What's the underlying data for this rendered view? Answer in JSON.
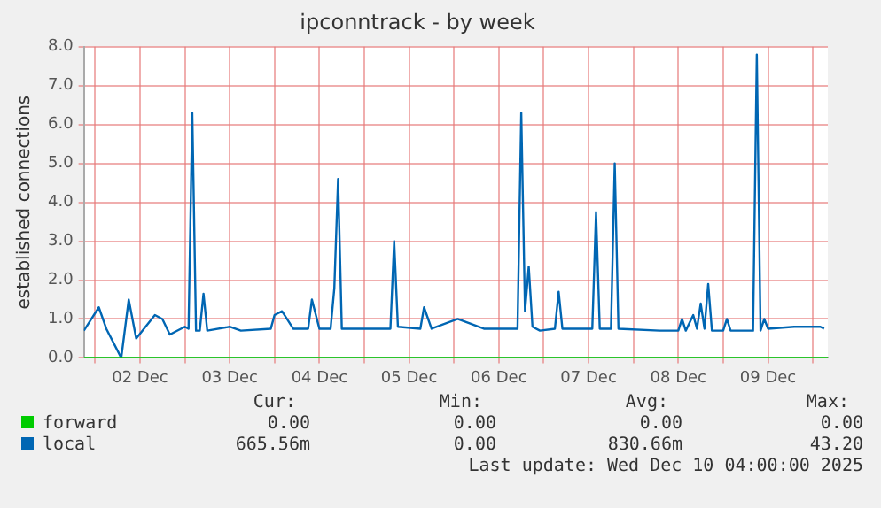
{
  "chart_data": {
    "type": "line",
    "title": "ipconntrack - by week",
    "ylabel": "established connections",
    "xlim": [
      "2025-12-01T21:00",
      "2025-12-10T04:00"
    ],
    "xticks": [
      {
        "value": "2025-12-02T00:00",
        "label": null
      },
      {
        "value": "2025-12-02T12:00",
        "label": "02 Dec"
      },
      {
        "value": "2025-12-03T00:00",
        "label": null
      },
      {
        "value": "2025-12-03T12:00",
        "label": "03 Dec"
      },
      {
        "value": "2025-12-04T00:00",
        "label": null
      },
      {
        "value": "2025-12-04T12:00",
        "label": "04 Dec"
      },
      {
        "value": "2025-12-05T00:00",
        "label": null
      },
      {
        "value": "2025-12-05T12:00",
        "label": "05 Dec"
      },
      {
        "value": "2025-12-06T00:00",
        "label": null
      },
      {
        "value": "2025-12-06T12:00",
        "label": "06 Dec"
      },
      {
        "value": "2025-12-07T00:00",
        "label": null
      },
      {
        "value": "2025-12-07T12:00",
        "label": "07 Dec"
      },
      {
        "value": "2025-12-08T00:00",
        "label": null
      },
      {
        "value": "2025-12-08T12:00",
        "label": "08 Dec"
      },
      {
        "value": "2025-12-09T00:00",
        "label": null
      },
      {
        "value": "2025-12-09T12:00",
        "label": "09 Dec"
      },
      {
        "value": "2025-12-10T00:00",
        "label": null
      }
    ],
    "ylim": [
      0,
      8
    ],
    "yticks": [
      {
        "value": 0,
        "label": "0.0"
      },
      {
        "value": 1,
        "label": "1.0"
      },
      {
        "value": 2,
        "label": "2.0"
      },
      {
        "value": 3,
        "label": "3.0"
      },
      {
        "value": 4,
        "label": "4.0"
      },
      {
        "value": 5,
        "label": "5.0"
      },
      {
        "value": 6,
        "label": "6.0"
      },
      {
        "value": 7,
        "label": "7.0"
      },
      {
        "value": 8,
        "label": "8.0"
      }
    ],
    "grid": true,
    "legend": "bottom",
    "marker": "none",
    "line_style": "solid",
    "series": [
      {
        "name": "forward",
        "color": "#00cc00",
        "x": [
          "2025-12-01T21:00",
          "2025-12-10T04:00"
        ],
        "values": [
          0,
          0
        ]
      },
      {
        "name": "local",
        "color": "#0066b3",
        "x": [
          "2025-12-01T21:00",
          "2025-12-02T01:00",
          "2025-12-02T03:00",
          "2025-12-02T07:00",
          "2025-12-02T09:00",
          "2025-12-02T11:00",
          "2025-12-02T16:00",
          "2025-12-02T18:00",
          "2025-12-02T20:00",
          "2025-12-03T00:00",
          "2025-12-03T01:00",
          "2025-12-03T02:00",
          "2025-12-03T03:00",
          "2025-12-03T04:00",
          "2025-12-03T05:00",
          "2025-12-03T06:00",
          "2025-12-03T12:00",
          "2025-12-03T15:00",
          "2025-12-03T23:00",
          "2025-12-04T00:00",
          "2025-12-04T02:00",
          "2025-12-04T05:00",
          "2025-12-04T09:00",
          "2025-12-04T10:00",
          "2025-12-04T12:00",
          "2025-12-04T15:00",
          "2025-12-04T16:00",
          "2025-12-04T17:00",
          "2025-12-04T18:00",
          "2025-12-05T01:00",
          "2025-12-05T07:00",
          "2025-12-05T08:00",
          "2025-12-05T09:00",
          "2025-12-05T15:00",
          "2025-12-05T16:00",
          "2025-12-05T18:00",
          "2025-12-06T01:00",
          "2025-12-06T08:00",
          "2025-12-06T17:00",
          "2025-12-06T18:00",
          "2025-12-06T19:00",
          "2025-12-06T20:00",
          "2025-12-06T21:00",
          "2025-12-06T23:00",
          "2025-12-07T03:00",
          "2025-12-07T04:00",
          "2025-12-07T05:00",
          "2025-12-07T13:00",
          "2025-12-07T14:00",
          "2025-12-07T15:00",
          "2025-12-07T18:00",
          "2025-12-07T19:00",
          "2025-12-07T20:00",
          "2025-12-08T07:00",
          "2025-12-08T12:00",
          "2025-12-08T13:00",
          "2025-12-08T14:00",
          "2025-12-08T16:00",
          "2025-12-08T17:00",
          "2025-12-08T18:00",
          "2025-12-08T19:00",
          "2025-12-08T20:00",
          "2025-12-08T21:00",
          "2025-12-09T00:00",
          "2025-12-09T01:00",
          "2025-12-09T02:00",
          "2025-12-09T08:00",
          "2025-12-09T09:00",
          "2025-12-09T10:00",
          "2025-12-09T11:00",
          "2025-12-09T12:00",
          "2025-12-09T19:00",
          "2025-12-09T23:00",
          "2025-12-10T02:00",
          "2025-12-10T03:00"
        ],
        "values": [
          0.7,
          1.3,
          0.75,
          0.0,
          1.5,
          0.5,
          1.1,
          1.0,
          0.6,
          0.8,
          0.75,
          6.3,
          0.7,
          0.7,
          1.65,
          0.7,
          0.8,
          0.7,
          0.75,
          1.1,
          1.2,
          0.75,
          0.75,
          1.5,
          0.75,
          0.75,
          1.8,
          4.6,
          0.75,
          0.75,
          0.75,
          3.0,
          0.8,
          0.75,
          1.3,
          0.75,
          1.0,
          0.75,
          0.75,
          6.3,
          1.2,
          2.35,
          0.8,
          0.7,
          0.75,
          1.7,
          0.75,
          0.75,
          3.75,
          0.75,
          0.75,
          5.0,
          0.75,
          0.7,
          0.7,
          1.0,
          0.7,
          1.1,
          0.75,
          1.4,
          0.75,
          1.9,
          0.7,
          0.7,
          1.0,
          0.7,
          0.7,
          7.8,
          0.7,
          1.0,
          0.75,
          0.8,
          0.8,
          0.8,
          0.75
        ]
      }
    ],
    "annotations": [
      "Cur:",
      "Min:",
      "Avg:",
      "Max:",
      "0.00",
      "0.00",
      "0.00",
      "0.00",
      "665.56m",
      "0.00",
      "830.66m",
      "43.20",
      "Last update: Wed Dec 10 04:00:00 2025"
    ]
  }
}
